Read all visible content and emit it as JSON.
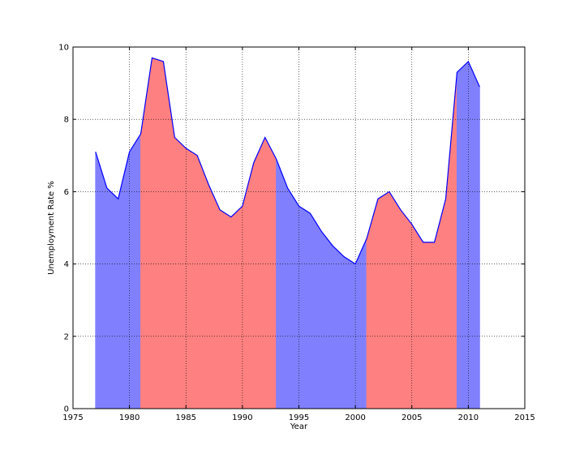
{
  "chart_data": {
    "type": "area",
    "title": "",
    "xlabel": "Year",
    "ylabel": "Unemployment Rate %",
    "xlim": [
      1975,
      2015
    ],
    "ylim": [
      0,
      10
    ],
    "xticks": [
      1975,
      1980,
      1985,
      1990,
      1995,
      2000,
      2005,
      2010,
      2015
    ],
    "yticks": [
      0,
      2,
      4,
      6,
      8,
      10
    ],
    "grid": true,
    "grid_style": "dotted",
    "line_color": "#0000ff",
    "series": [
      {
        "x": [
          1977,
          1978,
          1979,
          1980,
          1981,
          1982,
          1983,
          1984,
          1985,
          1986,
          1987,
          1988,
          1989,
          1990,
          1991,
          1992,
          1993,
          1994,
          1995,
          1996,
          1997,
          1998,
          1999,
          2000,
          2001,
          2002,
          2003,
          2004,
          2005,
          2006,
          2007,
          2008,
          2009,
          2010,
          2011
        ],
        "y": [
          7.1,
          6.1,
          5.8,
          7.1,
          7.6,
          9.7,
          9.6,
          7.5,
          7.2,
          7.0,
          6.2,
          5.5,
          5.3,
          5.6,
          6.8,
          7.5,
          6.9,
          6.1,
          5.6,
          5.4,
          4.9,
          4.5,
          4.2,
          4.0,
          4.7,
          5.8,
          6.0,
          5.5,
          5.1,
          4.6,
          4.6,
          5.8,
          9.3,
          9.6,
          8.9
        ]
      }
    ],
    "fill_segments": [
      {
        "from": 1977,
        "to": 1981,
        "color": "#8080ff"
      },
      {
        "from": 1981,
        "to": 1989,
        "color": "#ff8080"
      },
      {
        "from": 1989,
        "to": 1993,
        "color": "#ff8080"
      },
      {
        "from": 1993,
        "to": 2001,
        "color": "#8080ff"
      },
      {
        "from": 2001,
        "to": 2009,
        "color": "#ff8080"
      },
      {
        "from": 2009,
        "to": 2011,
        "color": "#8080ff"
      }
    ]
  }
}
